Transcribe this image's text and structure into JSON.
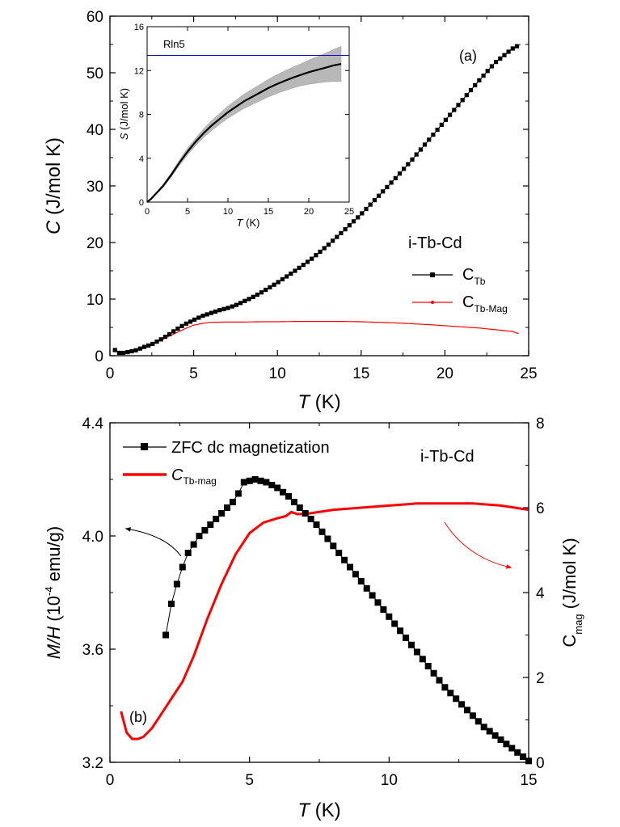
{
  "chart_data": [
    {
      "panel_label": "(a)",
      "type": "scatter",
      "xlabel_italic": "T",
      "xlabel_unit": " (K)",
      "ylabel_italic": "C",
      "ylabel_unit": " (J/mol K)",
      "xlim": [
        0,
        25
      ],
      "ylim": [
        0,
        60
      ],
      "x_ticks": [
        "0",
        "5",
        "10",
        "15",
        "20",
        "25"
      ],
      "y_ticks": [
        "0",
        "10",
        "20",
        "30",
        "40",
        "50",
        "60"
      ],
      "legend_title": "i-Tb-Cd",
      "legend_placement": "right",
      "series": [
        {
          "name": "C_Tb",
          "label_main": "C",
          "label_sub": "Tb",
          "color": "#000000",
          "marker": "square",
          "x": [
            0.3,
            0.6,
            1.0,
            1.5,
            2.0,
            2.5,
            3.0,
            3.5,
            4.0,
            4.5,
            5.0,
            5.5,
            6.0,
            6.5,
            7.0,
            7.5,
            8.0,
            8.5,
            9.0,
            10.0,
            11.0,
            12.0,
            13.0,
            14.0,
            15.0,
            16.0,
            17.0,
            18.0,
            19.0,
            20.0,
            21.0,
            22.0,
            23.0,
            24.0,
            24.5
          ],
          "y": [
            1.0,
            0.4,
            0.6,
            0.9,
            1.5,
            2.0,
            2.8,
            3.7,
            4.7,
            5.6,
            6.3,
            7.0,
            7.5,
            8.0,
            8.4,
            8.9,
            9.6,
            10.3,
            11.1,
            12.9,
            14.9,
            17.0,
            19.5,
            22.2,
            25.0,
            28.1,
            31.2,
            34.5,
            38.0,
            41.5,
            45.0,
            48.5,
            51.8,
            54.2,
            55.0
          ]
        },
        {
          "name": "C_Tb-Mag",
          "label_main": "C",
          "label_sub": "Tb-Mag",
          "color": "#ff0000",
          "marker": "none",
          "x": [
            0.3,
            0.6,
            1.0,
            1.5,
            2.0,
            2.5,
            3.0,
            3.5,
            4.0,
            4.5,
            5.0,
            5.5,
            6.0,
            7.0,
            8.0,
            9.0,
            10.0,
            11.0,
            12.0,
            13.0,
            14.0,
            15.0,
            16.0,
            17.0,
            18.0,
            19.0,
            20.0,
            21.0,
            22.0,
            23.0,
            24.0,
            24.4
          ],
          "y": [
            1.0,
            0.6,
            0.5,
            0.8,
            1.3,
            2.0,
            2.7,
            3.4,
            4.1,
            4.8,
            5.4,
            5.7,
            5.9,
            5.95,
            5.95,
            6.0,
            6.0,
            6.05,
            6.05,
            6.05,
            6.05,
            6.0,
            5.9,
            5.8,
            5.65,
            5.5,
            5.3,
            5.1,
            4.9,
            4.6,
            4.3,
            3.9
          ]
        }
      ],
      "inset": {
        "type": "line",
        "xlabel_italic": "T",
        "xlabel_unit": " (K)",
        "ylabel_italic": "S",
        "ylabel_unit": " (J/mol K)",
        "xlim": [
          0,
          25
        ],
        "ylim": [
          0,
          16
        ],
        "x_ticks": [
          "0",
          "5",
          "10",
          "15",
          "20",
          "25"
        ],
        "y_ticks": [
          "0",
          "4",
          "8",
          "12",
          "16"
        ],
        "reference_label": "Rln5",
        "reference_value": 13.38,
        "reference_color": "#0000cc",
        "band_color": "#b8b8b8",
        "line_color": "#000000",
        "x": [
          0,
          0.5,
          1,
          2,
          3,
          4,
          5,
          6,
          7,
          8,
          9,
          10,
          11,
          12,
          13,
          14,
          15,
          16,
          17,
          18,
          19,
          20,
          21,
          22,
          23,
          24
        ],
        "y": [
          0,
          0.3,
          0.7,
          1.5,
          2.5,
          3.6,
          4.6,
          5.5,
          6.3,
          7.0,
          7.6,
          8.2,
          8.7,
          9.2,
          9.6,
          10.0,
          10.4,
          10.75,
          11.05,
          11.35,
          11.6,
          11.85,
          12.05,
          12.25,
          12.45,
          12.6
        ],
        "band_halfwidth": [
          0,
          0.05,
          0.1,
          0.15,
          0.2,
          0.25,
          0.3,
          0.35,
          0.4,
          0.45,
          0.5,
          0.55,
          0.6,
          0.65,
          0.7,
          0.75,
          0.8,
          0.85,
          0.9,
          0.95,
          1.0,
          1.1,
          1.2,
          1.3,
          1.45,
          1.6
        ]
      }
    },
    {
      "panel_label": "(b)",
      "type": "line",
      "xlabel_italic": "T",
      "xlabel_unit": " (K)",
      "ylabel_left_italic": "M/H",
      "ylabel_left_unit_pre": " (10",
      "ylabel_left_unit_sup": "-4",
      "ylabel_left_unit_post": " emu/g)",
      "ylabel_right_main": "C",
      "ylabel_right_sub": "mag",
      "ylabel_right_unit": " (J/mol K)",
      "xlim": [
        0,
        15
      ],
      "ylim_left": [
        3.2,
        4.4
      ],
      "ylim_right": [
        0,
        8
      ],
      "x_ticks": [
        "0",
        "5",
        "10",
        "15"
      ],
      "y_left_ticks": [
        "3.2",
        "3.6",
        "4.0",
        "4.4"
      ],
      "y_right_ticks": [
        "0",
        "2",
        "4",
        "6",
        "8"
      ],
      "annotation": "i-Tb-Cd",
      "legend_placement": "top-left",
      "series": [
        {
          "name": "ZFC dc magnetization",
          "legend_label": "ZFC dc magnetization",
          "axis": "left",
          "color": "#000000",
          "marker": "square",
          "x": [
            2.0,
            2.2,
            2.4,
            2.6,
            2.8,
            3.0,
            3.2,
            3.4,
            3.6,
            3.8,
            4.0,
            4.2,
            4.4,
            4.6,
            4.8,
            5.0,
            5.2,
            5.4,
            5.6,
            5.8,
            6.0,
            6.2,
            6.4,
            6.6,
            6.8,
            7.0,
            7.2,
            7.4,
            7.6,
            7.8,
            8.0,
            8.2,
            8.4,
            8.6,
            8.8,
            9.0,
            9.2,
            9.4,
            9.6,
            9.8,
            10.0,
            10.2,
            10.4,
            10.6,
            10.8,
            11.0,
            11.2,
            11.4,
            11.6,
            11.8,
            12.0,
            12.2,
            12.4,
            12.6,
            12.8,
            13.0,
            13.2,
            13.4,
            13.6,
            13.8,
            14.0,
            14.2,
            14.4,
            14.6,
            14.8,
            15.0
          ],
          "y": [
            3.65,
            3.76,
            3.83,
            3.89,
            3.94,
            3.97,
            4.0,
            4.02,
            4.04,
            4.06,
            4.08,
            4.1,
            4.12,
            4.15,
            4.19,
            4.195,
            4.2,
            4.195,
            4.19,
            4.18,
            4.17,
            4.155,
            4.14,
            4.12,
            4.1,
            4.08,
            4.06,
            4.04,
            4.015,
            3.99,
            3.965,
            3.94,
            3.915,
            3.89,
            3.865,
            3.84,
            3.815,
            3.79,
            3.765,
            3.74,
            3.715,
            3.69,
            3.665,
            3.64,
            3.615,
            3.59,
            3.565,
            3.54,
            3.515,
            3.49,
            3.465,
            3.445,
            3.425,
            3.405,
            3.385,
            3.365,
            3.345,
            3.325,
            3.31,
            3.295,
            3.28,
            3.265,
            3.25,
            3.235,
            3.22,
            3.205
          ]
        },
        {
          "name": "C_Tb-mag",
          "legend_main": "C",
          "legend_sub": "Tb-mag",
          "axis": "right",
          "color": "#ff0000",
          "marker": "none",
          "x": [
            0.4,
            0.6,
            0.8,
            1.0,
            1.2,
            1.5,
            1.8,
            2.0,
            2.3,
            2.6,
            3.0,
            3.5,
            4.0,
            4.5,
            5.0,
            5.5,
            6.0,
            6.3,
            6.5,
            6.7,
            7.0,
            8.0,
            9.0,
            10.0,
            11.0,
            12.0,
            13.0,
            14.0,
            15.0
          ],
          "y": [
            1.2,
            0.7,
            0.55,
            0.55,
            0.6,
            0.8,
            1.1,
            1.3,
            1.6,
            1.9,
            2.5,
            3.4,
            4.2,
            4.9,
            5.4,
            5.65,
            5.75,
            5.8,
            5.9,
            5.85,
            5.85,
            5.95,
            6.0,
            6.05,
            6.1,
            6.1,
            6.1,
            6.05,
            5.95
          ]
        }
      ]
    }
  ]
}
